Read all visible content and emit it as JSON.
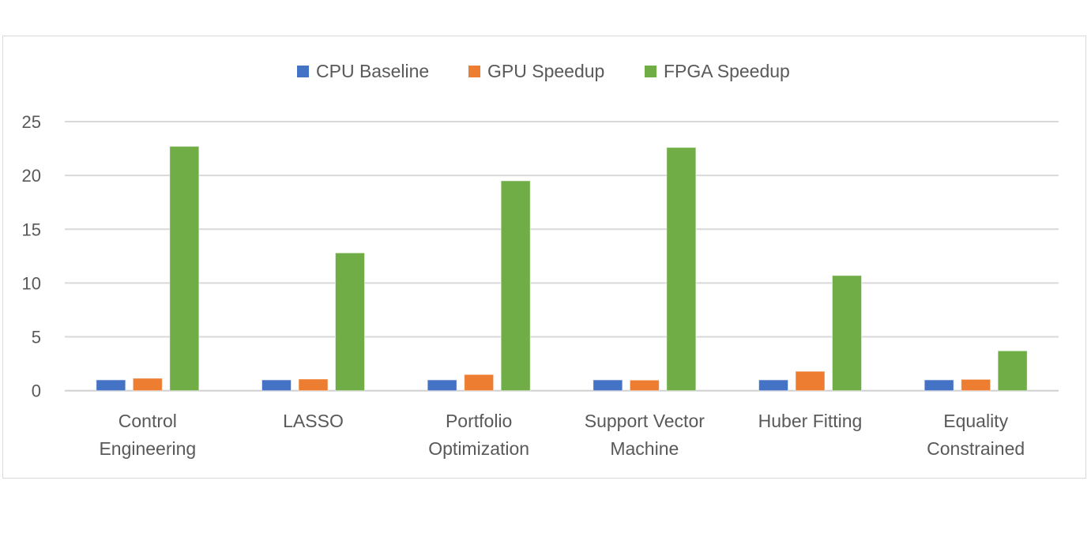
{
  "chart_data": {
    "type": "bar",
    "categories": [
      [
        "Control",
        "Engineering"
      ],
      [
        "LASSO"
      ],
      [
        "Portfolio",
        "Optimization"
      ],
      [
        "Support Vector",
        "Machine"
      ],
      [
        "Huber Fitting"
      ],
      [
        "Equality",
        "Constrained"
      ]
    ],
    "series": [
      {
        "name": "CPU Baseline",
        "color": "#4472c4",
        "values": [
          1,
          1,
          1,
          1,
          1,
          1
        ]
      },
      {
        "name": "GPU Speedup",
        "color": "#ed7d31",
        "values": [
          1.15,
          1.08,
          1.5,
          0.98,
          1.8,
          1.05
        ]
      },
      {
        "name": "FPGA Speedup",
        "color": "#70ad47",
        "values": [
          22.7,
          12.8,
          19.5,
          22.6,
          10.7,
          3.7
        ]
      }
    ],
    "yticks": [
      "0",
      "5",
      "10",
      "15",
      "20",
      "25"
    ],
    "ylim": [
      0,
      25
    ],
    "grid": true,
    "legend": "top-center",
    "title": "",
    "xlabel": "",
    "ylabel": ""
  }
}
